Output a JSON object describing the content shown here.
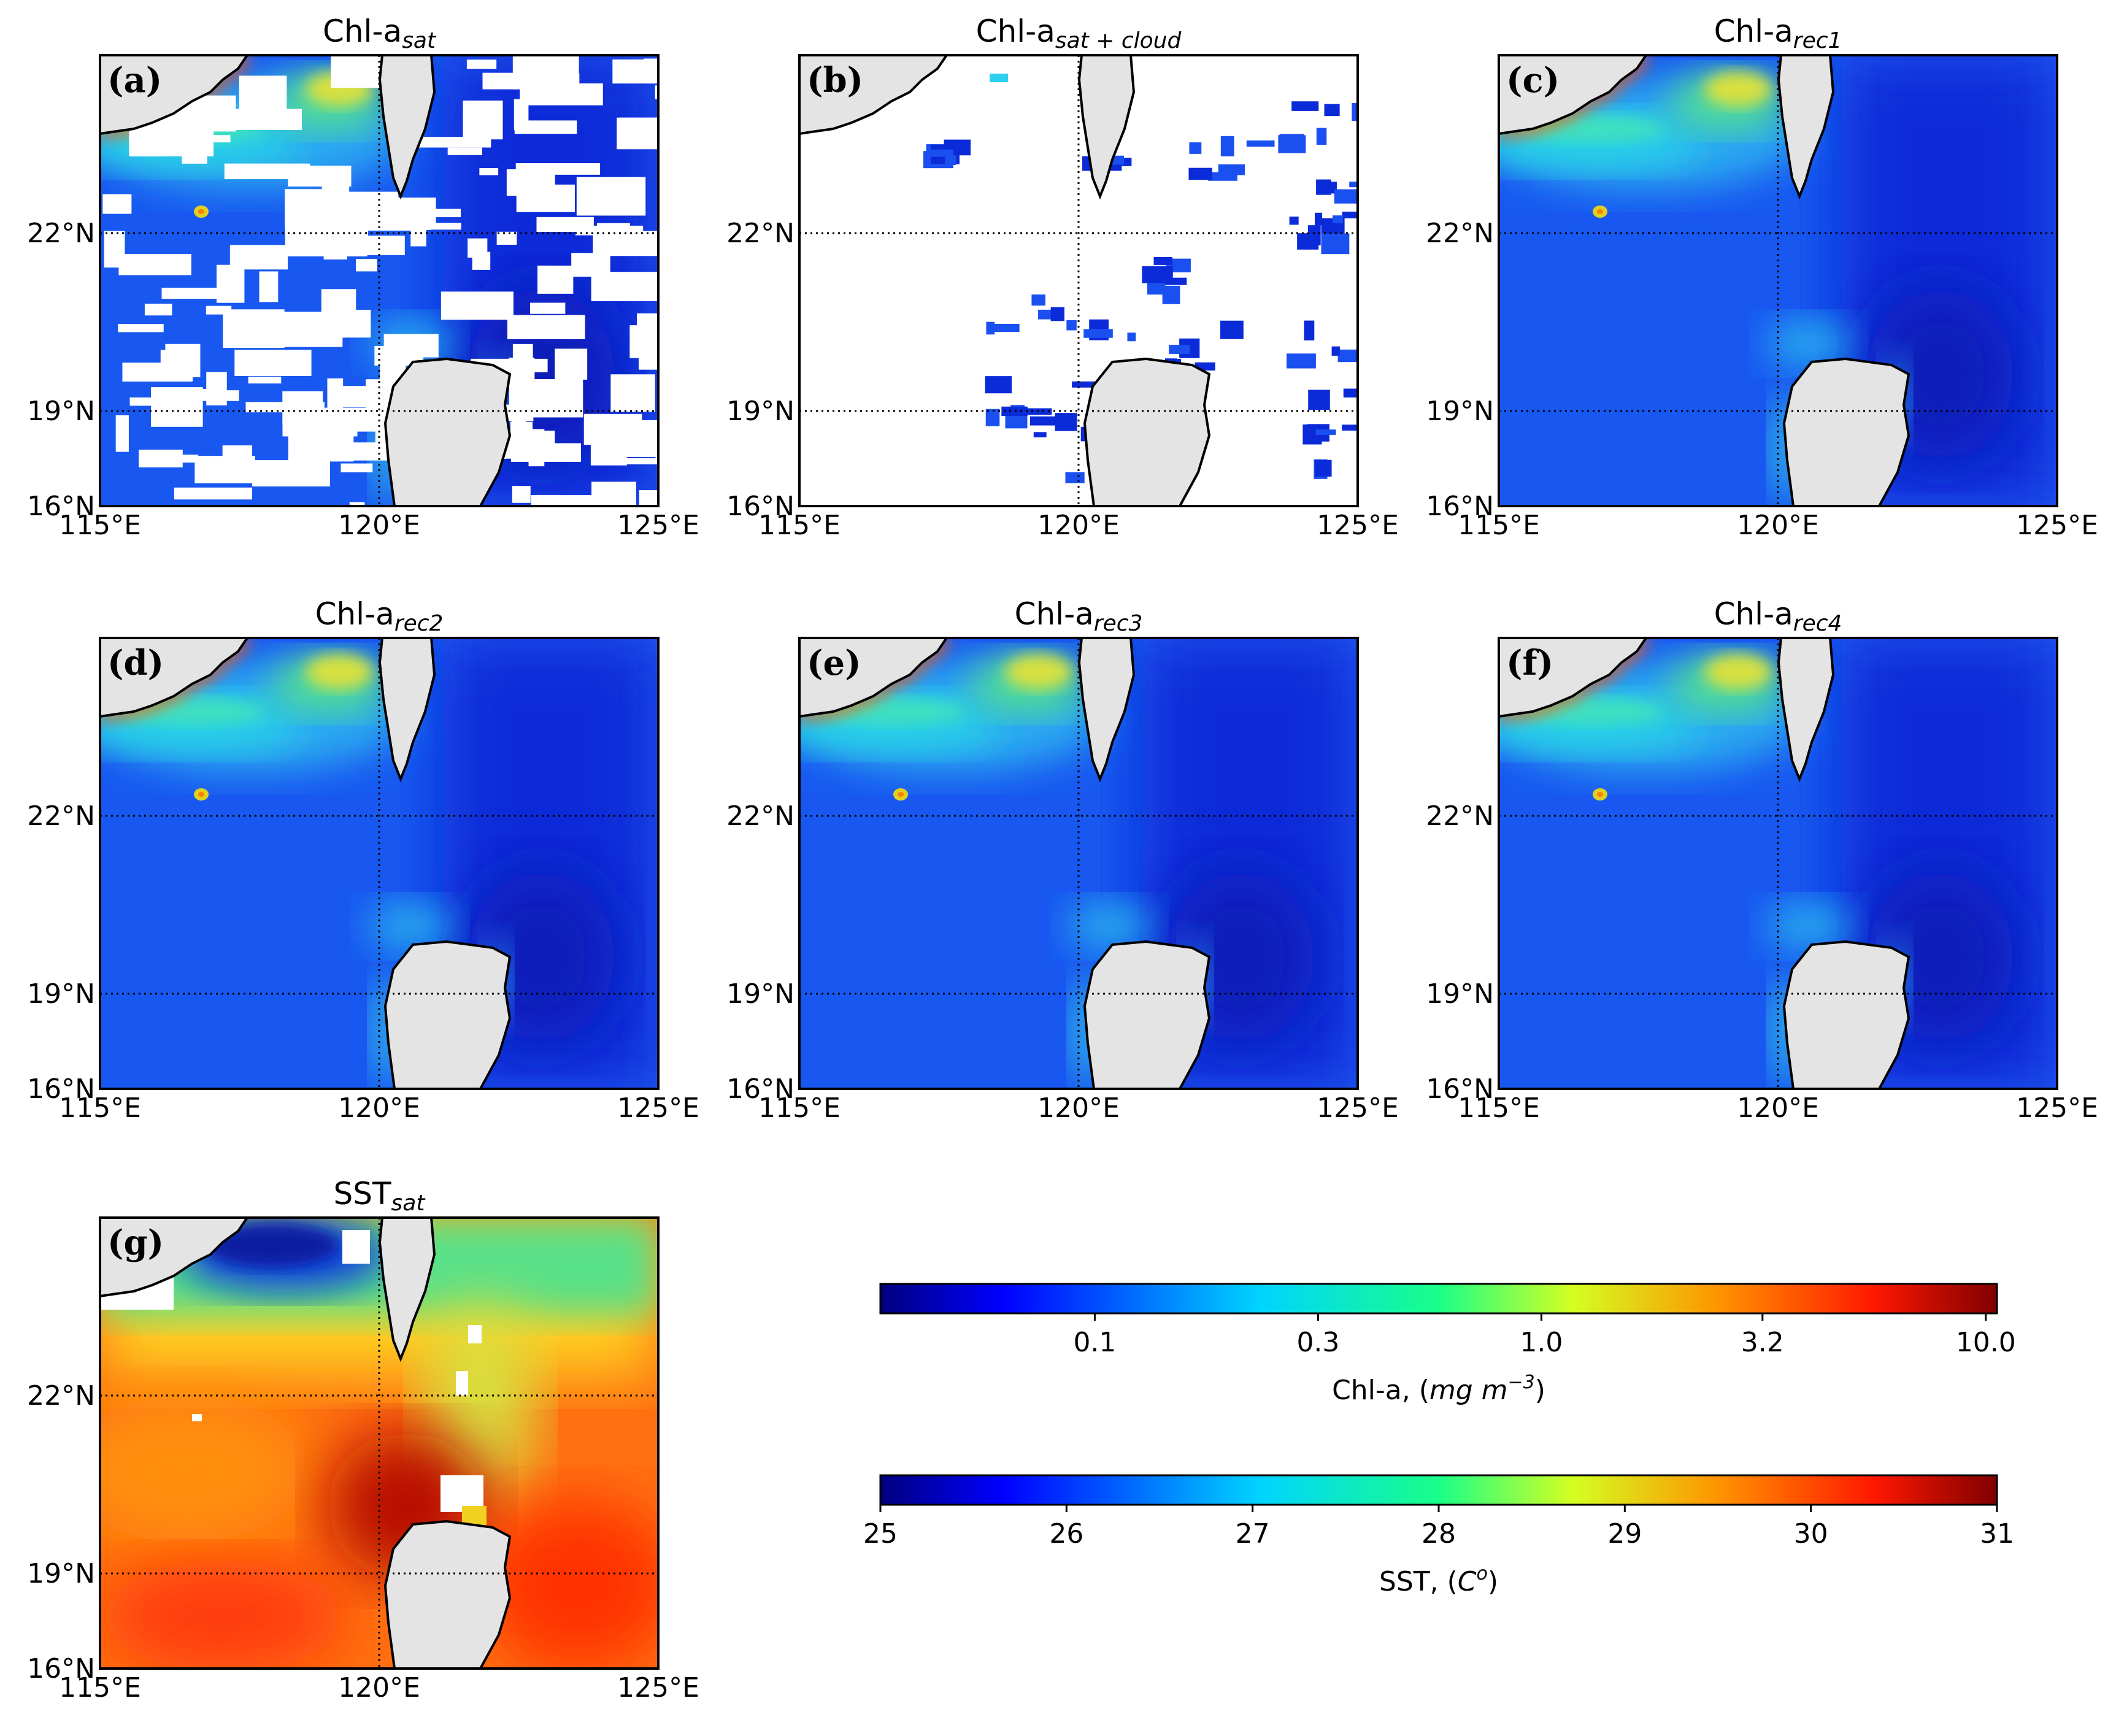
{
  "figure": {
    "panels": [
      {
        "id": "a",
        "label": "(a)",
        "title_main": "Chl-a",
        "title_sub": "sat",
        "kind": "chl-sat"
      },
      {
        "id": "b",
        "label": "(b)",
        "title_main": "Chl-a",
        "title_sub": "sat + cloud",
        "kind": "chl-cloud"
      },
      {
        "id": "c",
        "label": "(c)",
        "title_main": "Chl-a",
        "title_sub": "rec1",
        "kind": "chl-rec"
      },
      {
        "id": "d",
        "label": "(d)",
        "title_main": "Chl-a",
        "title_sub": "rec2",
        "kind": "chl-rec"
      },
      {
        "id": "e",
        "label": "(e)",
        "title_main": "Chl-a",
        "title_sub": "rec3",
        "kind": "chl-rec"
      },
      {
        "id": "f",
        "label": "(f)",
        "title_main": "Chl-a",
        "title_sub": "rec4",
        "kind": "chl-rec"
      },
      {
        "id": "g",
        "label": "(g)",
        "title_main": "SST",
        "title_sub": "sat",
        "kind": "sst"
      }
    ],
    "axes": {
      "lon_ticks": [
        "115°E",
        "120°E",
        "125°E"
      ],
      "lat_ticks": [
        "22°N",
        "19°N",
        "16°N"
      ]
    },
    "colorbars": [
      {
        "id": "chl",
        "ticks": [
          "0.1",
          "0.3",
          "1.0",
          "3.2",
          "10.0"
        ],
        "label_main": "Chl-a, (",
        "label_unit": "mg m",
        "label_exp": "−3",
        "label_close": ")"
      },
      {
        "id": "sst",
        "ticks": [
          "25",
          "26",
          "27",
          "28",
          "29",
          "30",
          "31"
        ],
        "label_main": "SST, (",
        "label_unit": "C",
        "label_exp": "o",
        "label_close": ")"
      }
    ]
  },
  "colors": {
    "land": "#e4e4e4",
    "cloud": "#ffffff",
    "jet": [
      "#000080",
      "#0000ff",
      "#0080ff",
      "#00ffff",
      "#80ff80",
      "#ffff00",
      "#ff8000",
      "#ff0000",
      "#800000"
    ]
  }
}
